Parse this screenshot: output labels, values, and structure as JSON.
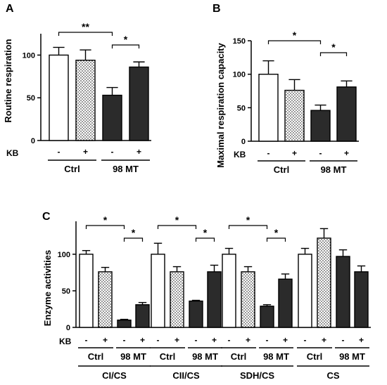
{
  "colors": {
    "white_bar": "#ffffff",
    "dotted_bar": "#ffffff",
    "dark_bar": "#2b2b2b",
    "stroke": "#000000"
  },
  "kb_label": "KB",
  "chart_data": [
    {
      "panel": "A",
      "type": "bar",
      "ylabel": "Routine respiration",
      "ylim": [
        0,
        125
      ],
      "yticks": [
        0,
        50,
        100
      ],
      "bars": [
        {
          "kb": "-",
          "group": "Ctrl",
          "fill": "white",
          "value": 100,
          "err": 9
        },
        {
          "kb": "+",
          "group": "Ctrl",
          "fill": "dotted",
          "value": 94,
          "err": 12
        },
        {
          "kb": "-",
          "group": "98 MT",
          "fill": "dark",
          "value": 53,
          "err": 9
        },
        {
          "kb": "+",
          "group": "98 MT",
          "fill": "dark",
          "value": 86,
          "err": 6
        }
      ],
      "groups": [
        "Ctrl",
        "98 MT"
      ],
      "significance": [
        {
          "from": 0,
          "to": 2,
          "label": "**"
        },
        {
          "from": 2,
          "to": 3,
          "label": "*"
        }
      ]
    },
    {
      "panel": "B",
      "type": "bar",
      "ylabel": "Maximal respiration capacity",
      "ylim": [
        0,
        150
      ],
      "yticks": [
        0,
        50,
        100,
        150
      ],
      "bars": [
        {
          "kb": "-",
          "group": "Ctrl",
          "fill": "white",
          "value": 100,
          "err": 20
        },
        {
          "kb": "+",
          "group": "Ctrl",
          "fill": "dotted",
          "value": 76,
          "err": 16
        },
        {
          "kb": "-",
          "group": "98 MT",
          "fill": "dark",
          "value": 46,
          "err": 8
        },
        {
          "kb": "+",
          "group": "98 MT",
          "fill": "dark",
          "value": 81,
          "err": 9
        }
      ],
      "groups": [
        "Ctrl",
        "98 MT"
      ],
      "significance": [
        {
          "from": 0,
          "to": 2,
          "label": "*"
        },
        {
          "from": 2,
          "to": 3,
          "label": "*"
        }
      ]
    },
    {
      "panel": "C",
      "type": "bar",
      "ylabel": "Enzyme activities",
      "ylim": [
        0,
        145
      ],
      "yticks": [
        0,
        50,
        100
      ],
      "bars": [
        {
          "kb": "-",
          "group": "Ctrl",
          "fill": "white",
          "value": 100,
          "err": 5
        },
        {
          "kb": "+",
          "group": "Ctrl",
          "fill": "dotted",
          "value": 76,
          "err": 6
        },
        {
          "kb": "-",
          "group": "98 MT",
          "fill": "dark",
          "value": 10,
          "err": 1
        },
        {
          "kb": "+",
          "group": "98 MT",
          "fill": "dark",
          "value": 31,
          "err": 3
        },
        {
          "kb": "-",
          "group": "Ctrl",
          "fill": "white",
          "value": 100,
          "err": 15
        },
        {
          "kb": "+",
          "group": "Ctrl",
          "fill": "dotted",
          "value": 76,
          "err": 7
        },
        {
          "kb": "-",
          "group": "98 MT",
          "fill": "dark",
          "value": 36,
          "err": 1
        },
        {
          "kb": "+",
          "group": "98 MT",
          "fill": "dark",
          "value": 76,
          "err": 9
        },
        {
          "kb": "-",
          "group": "Ctrl",
          "fill": "white",
          "value": 100,
          "err": 8
        },
        {
          "kb": "+",
          "group": "Ctrl",
          "fill": "dotted",
          "value": 76,
          "err": 7
        },
        {
          "kb": "-",
          "group": "98 MT",
          "fill": "dark",
          "value": 29,
          "err": 2
        },
        {
          "kb": "+",
          "group": "98 MT",
          "fill": "dark",
          "value": 66,
          "err": 7
        },
        {
          "kb": "-",
          "group": "Ctrl",
          "fill": "white",
          "value": 100,
          "err": 8
        },
        {
          "kb": "+",
          "group": "Ctrl",
          "fill": "dotted",
          "value": 122,
          "err": 13
        },
        {
          "kb": "-",
          "group": "98 MT",
          "fill": "dark",
          "value": 97,
          "err": 9
        },
        {
          "kb": "+",
          "group": "98 MT",
          "fill": "dark",
          "value": 76,
          "err": 8
        }
      ],
      "groups": [
        "Ctrl",
        "98 MT",
        "Ctrl",
        "98 MT",
        "Ctrl",
        "98 MT",
        "Ctrl",
        "98 MT"
      ],
      "categories": [
        "CI/CS",
        "CII/CS",
        "SDH/CS",
        "CS"
      ],
      "significance": [
        {
          "from": 0,
          "to": 2,
          "label": "*"
        },
        {
          "from": 2,
          "to": 3,
          "label": "*"
        },
        {
          "from": 4,
          "to": 6,
          "label": "*"
        },
        {
          "from": 6,
          "to": 7,
          "label": "*"
        },
        {
          "from": 8,
          "to": 10,
          "label": "*"
        },
        {
          "from": 10,
          "to": 11,
          "label": "*"
        }
      ]
    }
  ]
}
